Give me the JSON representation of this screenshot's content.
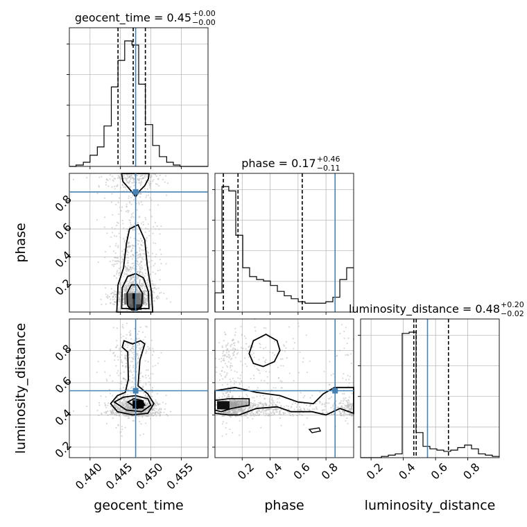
{
  "chart_data": {
    "type": "corner",
    "parameters": [
      "geocent_time",
      "phase",
      "luminosity_distance"
    ],
    "ranges": {
      "geocent_time": [
        0.4366,
        0.4594
      ],
      "phase": [
        0.005,
        0.998
      ],
      "luminosity_distance": [
        0.135,
        0.995
      ]
    },
    "truths": {
      "geocent_time": 0.4475,
      "phase": 0.865,
      "luminosity_distance": 0.55
    },
    "titles": [
      {
        "param": "geocent_time",
        "label": "geocent_time = 0.45",
        "plus": "+0.00",
        "minus": "−0.00",
        "quantiles": [
          0.4446,
          0.4471,
          0.4491
        ]
      },
      {
        "param": "phase",
        "label": "phase = 0.17",
        "plus": "+0.46",
        "minus": "−0.11",
        "quantiles": [
          0.065,
          0.17,
          0.63
        ]
      },
      {
        "param": "luminosity_distance",
        "label": "luminosity_distance = 0.48",
        "plus": "+0.20",
        "minus": "−0.02",
        "quantiles": [
          0.465,
          0.48,
          0.68
        ]
      }
    ],
    "ticks": {
      "geocent_time": {
        "values": [
          0.44,
          0.445,
          0.45,
          0.455
        ],
        "labels": [
          "0.440",
          "0.445",
          "0.450",
          "0.455"
        ]
      },
      "phase": {
        "values": [
          0.2,
          0.4,
          0.6,
          0.8
        ],
        "labels": [
          "0.2",
          "0.4",
          "0.6",
          "0.8"
        ]
      },
      "luminosity_distance": {
        "values": [
          0.2,
          0.4,
          0.6,
          0.8
        ],
        "labels": [
          "0.2",
          "0.4",
          "0.6",
          "0.8"
        ]
      }
    },
    "histograms": {
      "geocent_time": {
        "edges": [
          0.4366,
          0.4377,
          0.4389,
          0.44,
          0.4412,
          0.4423,
          0.4435,
          0.4446,
          0.4457,
          0.4469,
          0.448,
          0.4491,
          0.4503,
          0.4514,
          0.4526,
          0.4537,
          0.4548,
          0.456,
          0.4571,
          0.4583,
          0.4594
        ],
        "counts": [
          0,
          1,
          3,
          8,
          14,
          29,
          57,
          76,
          90,
          87,
          59,
          30,
          15,
          7,
          3,
          1,
          0,
          0,
          0,
          0
        ]
      },
      "phase": {
        "edges": [
          0.005,
          0.055,
          0.104,
          0.154,
          0.204,
          0.253,
          0.303,
          0.353,
          0.402,
          0.452,
          0.501,
          0.551,
          0.601,
          0.65,
          0.7,
          0.75,
          0.799,
          0.849,
          0.899,
          0.948,
          0.998
        ],
        "counts": [
          13,
          85,
          82,
          52,
          30,
          24,
          22,
          21,
          18,
          14,
          11,
          9,
          7,
          6,
          6,
          6,
          7,
          10,
          22,
          30
        ]
      },
      "luminosity_distance": {
        "edges": [
          0.135,
          0.178,
          0.221,
          0.264,
          0.307,
          0.35,
          0.393,
          0.436,
          0.479,
          0.522,
          0.565,
          0.608,
          0.651,
          0.694,
          0.737,
          0.78,
          0.823,
          0.866,
          0.909,
          0.952,
          0.995
        ],
        "counts": [
          0,
          0,
          0,
          1,
          2,
          3,
          99,
          100,
          20,
          9,
          7,
          6,
          5,
          6,
          8,
          10,
          7,
          3,
          2,
          1
        ]
      }
    },
    "grid": true,
    "sample_color": "#c8c8c8",
    "line_color": "#000000",
    "truth_color": "#4682b4"
  }
}
